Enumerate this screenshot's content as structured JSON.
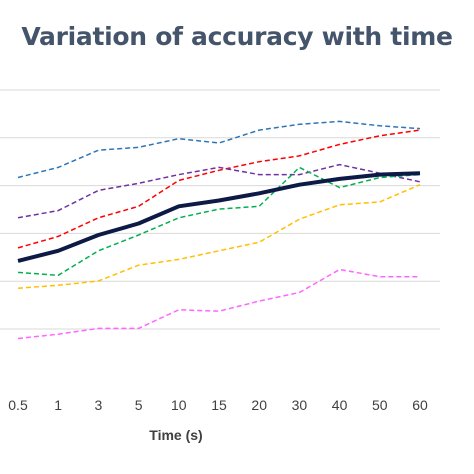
{
  "chart_data": {
    "type": "line",
    "title": "Variation of accuracy with time",
    "xlabel": "Time (s)",
    "ylabel": "",
    "categories": [
      "0.5",
      "1",
      "3",
      "5",
      "10",
      "15",
      "20",
      "30",
      "40",
      "50",
      "60"
    ],
    "gridlines": 6,
    "grid": true,
    "legend": "none",
    "series": [
      {
        "color": "#2e75b6",
        "style": "dashed",
        "width": 1.5,
        "values": [
          0.6,
          0.67,
          0.79,
          0.81,
          0.87,
          0.84,
          0.93,
          0.97,
          0.99,
          0.96,
          0.94
        ]
      },
      {
        "color": "#ff0000",
        "style": "dashed",
        "width": 1.5,
        "values": [
          0.11,
          0.19,
          0.32,
          0.4,
          0.58,
          0.65,
          0.71,
          0.75,
          0.83,
          0.89,
          0.93
        ]
      },
      {
        "color": "#7030a0",
        "style": "dashed",
        "width": 1.5,
        "values": [
          0.32,
          0.37,
          0.51,
          0.56,
          0.62,
          0.67,
          0.62,
          0.62,
          0.69,
          0.63,
          0.57
        ]
      },
      {
        "color": "#00b050",
        "style": "dashed",
        "width": 1.5,
        "values": [
          -0.06,
          -0.08,
          0.09,
          0.2,
          0.32,
          0.38,
          0.4,
          0.67,
          0.53,
          0.6,
          0.62
        ]
      },
      {
        "color": "#ffc000",
        "style": "dashed",
        "width": 1.5,
        "values": [
          -0.17,
          -0.15,
          -0.12,
          -0.01,
          0.03,
          0.09,
          0.15,
          0.31,
          0.41,
          0.43,
          0.55
        ]
      },
      {
        "color": "#ff66ff",
        "style": "dashed",
        "width": 1.5,
        "values": [
          -0.52,
          -0.49,
          -0.45,
          -0.45,
          -0.32,
          -0.33,
          -0.26,
          -0.2,
          -0.04,
          -0.09,
          -0.09
        ]
      },
      {
        "color": "#0d1a45",
        "style": "solid",
        "width": 4,
        "values": [
          0.02,
          0.09,
          0.2,
          0.28,
          0.4,
          0.44,
          0.49,
          0.55,
          0.59,
          0.62,
          0.63
        ]
      }
    ]
  }
}
